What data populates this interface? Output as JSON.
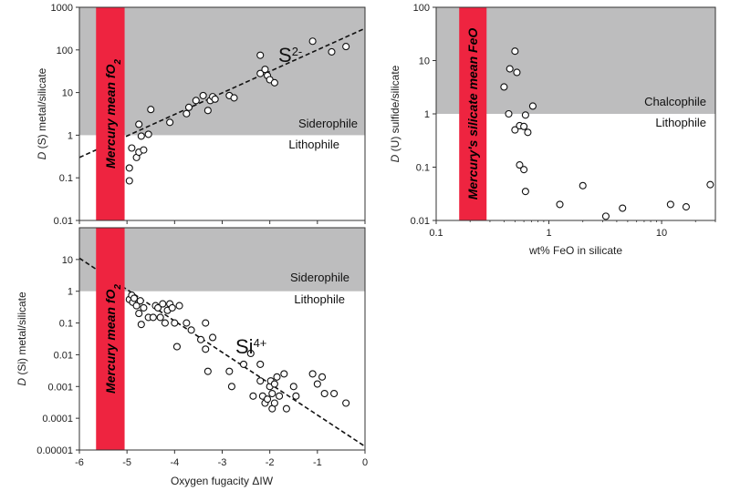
{
  "chart_data": [
    {
      "id": "sulfur",
      "type": "scatter",
      "ylabel": "D (S) metal/silicate",
      "ylabel_italic": "D",
      "ylabel_rest": " (S) metal/silicate",
      "x_scale": "linear",
      "y_scale": "log",
      "xlim": [
        -6,
        0
      ],
      "ylim": [
        0.01,
        1000
      ],
      "yticks": [
        "0.01",
        "0.1",
        "1",
        "10",
        "100",
        "1000"
      ],
      "shade_above": 1,
      "zone_upper": "Siderophile",
      "zone_lower": "Lithophile",
      "band_x": [
        -5.65,
        -5.05
      ],
      "band_label": "Mercury mean fO₂",
      "band_label_main": "Mercury mean fO",
      "band_label_sub": "2",
      "species_base": "S",
      "species_sup": "2-",
      "fit_line": [
        [
          -6,
          0.3
        ],
        [
          0,
          320
        ]
      ],
      "points": [
        [
          -4.95,
          0.17
        ],
        [
          -4.95,
          0.085
        ],
        [
          -4.9,
          0.5
        ],
        [
          -4.8,
          0.3
        ],
        [
          -4.75,
          0.4
        ],
        [
          -4.75,
          1.8
        ],
        [
          -4.7,
          0.95
        ],
        [
          -4.65,
          0.45
        ],
        [
          -4.55,
          1.05
        ],
        [
          -4.5,
          4.0
        ],
        [
          -4.1,
          2.0
        ],
        [
          -3.75,
          3.2
        ],
        [
          -3.7,
          4.5
        ],
        [
          -3.55,
          6.5
        ],
        [
          -3.4,
          8.5
        ],
        [
          -3.3,
          3.8
        ],
        [
          -3.25,
          6.5
        ],
        [
          -3.2,
          8.0
        ],
        [
          -3.15,
          7.0
        ],
        [
          -2.85,
          8.5
        ],
        [
          -2.75,
          7.5
        ],
        [
          -2.2,
          75
        ],
        [
          -2.2,
          28
        ],
        [
          -2.1,
          35
        ],
        [
          -2.05,
          25
        ],
        [
          -2.0,
          20
        ],
        [
          -1.9,
          17
        ],
        [
          -1.1,
          160
        ],
        [
          -0.7,
          90
        ],
        [
          -0.4,
          120
        ]
      ]
    },
    {
      "id": "silicon",
      "type": "scatter",
      "xlabel": "Oxygen fugacity ΔIW",
      "ylabel": "D (Si) metal/silicate",
      "ylabel_italic": "D",
      "ylabel_rest": " (Si) metal/silicate",
      "x_scale": "linear",
      "y_scale": "log",
      "xlim": [
        -6,
        0
      ],
      "ylim": [
        1e-05,
        100
      ],
      "xticks": [
        "-6",
        "-5",
        "-4",
        "-3",
        "-2",
        "-1",
        "0"
      ],
      "yticks": [
        "0.00001",
        "0.0001",
        "0.001",
        "0.01",
        "0.1",
        "1",
        "10"
      ],
      "shade_above": 1,
      "zone_upper": "Siderophile",
      "zone_lower": "Lithophile",
      "band_x": [
        -5.65,
        -5.05
      ],
      "band_label": "Mercury mean fO₂",
      "band_label_main": "Mercury mean fO",
      "band_label_sub": "2",
      "species_base": "Si",
      "species_sup": "4+",
      "fit_line": [
        [
          -6,
          11
        ],
        [
          0,
          1.3e-05
        ]
      ],
      "points": [
        [
          -4.95,
          0.55
        ],
        [
          -4.9,
          0.75
        ],
        [
          -4.88,
          0.45
        ],
        [
          -4.85,
          0.6
        ],
        [
          -4.8,
          0.35
        ],
        [
          -4.75,
          0.2
        ],
        [
          -4.72,
          0.5
        ],
        [
          -4.7,
          0.09
        ],
        [
          -4.65,
          0.3
        ],
        [
          -4.55,
          0.15
        ],
        [
          -4.45,
          0.15
        ],
        [
          -4.4,
          0.35
        ],
        [
          -4.35,
          0.3
        ],
        [
          -4.3,
          0.15
        ],
        [
          -4.25,
          0.4
        ],
        [
          -4.2,
          0.1
        ],
        [
          -4.15,
          0.25
        ],
        [
          -4.1,
          0.4
        ],
        [
          -4.05,
          0.3
        ],
        [
          -4.0,
          0.1
        ],
        [
          -3.95,
          0.018
        ],
        [
          -3.9,
          0.35
        ],
        [
          -3.75,
          0.1
        ],
        [
          -3.65,
          0.06
        ],
        [
          -3.45,
          0.03
        ],
        [
          -3.35,
          0.1
        ],
        [
          -3.35,
          0.015
        ],
        [
          -3.3,
          0.003
        ],
        [
          -3.2,
          0.035
        ],
        [
          -2.85,
          0.003
        ],
        [
          -2.8,
          0.001
        ],
        [
          -2.55,
          0.005
        ],
        [
          -2.4,
          0.011
        ],
        [
          -2.35,
          0.0005
        ],
        [
          -2.2,
          0.005
        ],
        [
          -2.2,
          0.0015
        ],
        [
          -2.15,
          0.0005
        ],
        [
          -2.1,
          0.0003
        ],
        [
          -2.05,
          0.0004
        ],
        [
          -2.0,
          0.001
        ],
        [
          -1.98,
          0.0015
        ],
        [
          -1.95,
          0.0006
        ],
        [
          -1.95,
          0.0002
        ],
        [
          -1.9,
          0.0003
        ],
        [
          -1.9,
          0.0012
        ],
        [
          -1.85,
          0.002
        ],
        [
          -1.8,
          0.0005
        ],
        [
          -1.7,
          0.0025
        ],
        [
          -1.65,
          0.0002
        ],
        [
          -1.5,
          0.001
        ],
        [
          -1.45,
          0.0005
        ],
        [
          -1.1,
          0.0025
        ],
        [
          -1.0,
          0.0012
        ],
        [
          -0.9,
          0.002
        ],
        [
          -0.85,
          0.0006
        ],
        [
          -0.65,
          0.0006
        ],
        [
          -0.4,
          0.0003
        ]
      ]
    },
    {
      "id": "uranium",
      "type": "scatter",
      "xlabel": "wt% FeO in silicate",
      "ylabel": "D (U) sulfide/silicate",
      "ylabel_italic": "D",
      "ylabel_rest": " (U) sulfide/silicate",
      "x_scale": "log",
      "y_scale": "log",
      "xlim": [
        0.1,
        30
      ],
      "ylim": [
        0.01,
        100
      ],
      "xticks": [
        "0.1",
        "1",
        "10"
      ],
      "yticks": [
        "0.01",
        "0.1",
        "1",
        "10",
        "100"
      ],
      "shade_above": 1,
      "zone_upper": "Chalcophile",
      "zone_lower": "Lithophile",
      "band_x": [
        0.16,
        0.28
      ],
      "band_label": "Mercury's silicate mean FeO",
      "points": [
        [
          0.4,
          3.2
        ],
        [
          0.45,
          7
        ],
        [
          0.5,
          15
        ],
        [
          0.52,
          6
        ],
        [
          0.44,
          1.0
        ],
        [
          0.5,
          0.5
        ],
        [
          0.55,
          0.6
        ],
        [
          0.62,
          0.95
        ],
        [
          0.6,
          0.58
        ],
        [
          0.65,
          0.45
        ],
        [
          0.72,
          1.4
        ],
        [
          0.55,
          0.11
        ],
        [
          0.6,
          0.09
        ],
        [
          0.62,
          0.035
        ],
        [
          1.25,
          0.02
        ],
        [
          2.0,
          0.045
        ],
        [
          3.2,
          0.012
        ],
        [
          4.5,
          0.017
        ],
        [
          12,
          0.02
        ],
        [
          16.5,
          0.018
        ],
        [
          27,
          0.047
        ]
      ]
    }
  ]
}
